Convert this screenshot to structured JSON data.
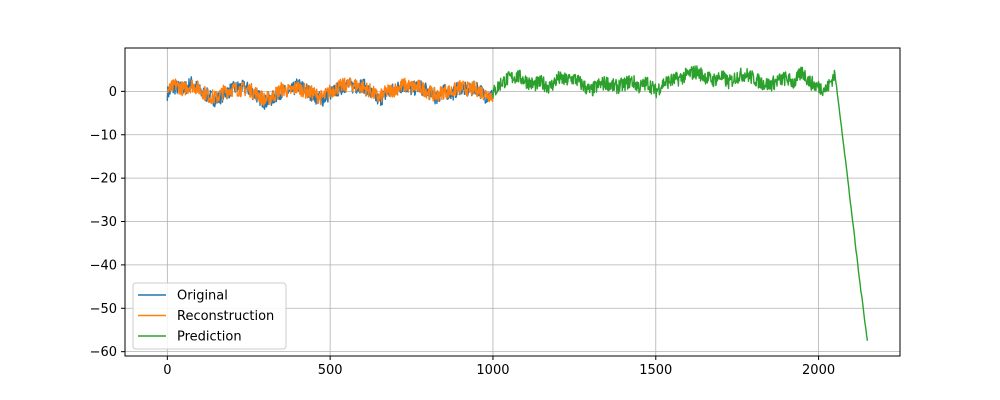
{
  "chart_data": {
    "type": "line",
    "title": "",
    "xlabel": "",
    "ylabel": "",
    "xlim": [
      -130,
      2250
    ],
    "ylim": [
      -61,
      10
    ],
    "grid": true,
    "legend": {
      "placement": "lower-left"
    },
    "x_ticks": [
      0,
      500,
      1000,
      1500,
      2000
    ],
    "x_tick_labels": [
      "0",
      "500",
      "1000",
      "1500",
      "2000"
    ],
    "y_ticks": [
      0,
      -10,
      -20,
      -30,
      -40,
      -50,
      -60
    ],
    "y_tick_labels": [
      "0",
      "−10",
      "−20",
      "−30",
      "−40",
      "−50",
      "−60"
    ],
    "series": [
      {
        "name": "Original",
        "color": "#1f77b4",
        "x": [
          0,
          25,
          50,
          75,
          100,
          125,
          150,
          175,
          200,
          225,
          250,
          275,
          300,
          325,
          350,
          375,
          400,
          425,
          450,
          475,
          500,
          525,
          550,
          575,
          600,
          625,
          650,
          675,
          700,
          725,
          750,
          775,
          800,
          825,
          850,
          875,
          900,
          925,
          950,
          975,
          1000
        ],
        "y": [
          -0.5,
          1.0,
          0.5,
          2.0,
          0.0,
          -1.0,
          -2.0,
          -0.5,
          0.5,
          1.0,
          0.5,
          -1.0,
          -2.5,
          -1.5,
          0.0,
          -0.5,
          1.5,
          0.5,
          -1.0,
          -2.0,
          -0.5,
          0.5,
          1.5,
          1.0,
          1.5,
          -0.5,
          -2.0,
          -0.5,
          0.5,
          1.5,
          0.5,
          1.0,
          0.0,
          -1.5,
          0.0,
          -0.5,
          1.0,
          0.0,
          1.0,
          -1.0,
          -1.0
        ]
      },
      {
        "name": "Reconstruction",
        "color": "#ff7f0e",
        "x": [
          0,
          25,
          50,
          75,
          100,
          125,
          150,
          175,
          200,
          225,
          250,
          275,
          300,
          325,
          350,
          375,
          400,
          425,
          450,
          475,
          500,
          525,
          550,
          575,
          600,
          625,
          650,
          675,
          700,
          725,
          750,
          775,
          800,
          825,
          850,
          875,
          900,
          925,
          950,
          975,
          1000
        ],
        "y": [
          0.0,
          1.5,
          0.5,
          1.5,
          0.5,
          -1.0,
          -1.5,
          0.0,
          0.5,
          0.5,
          0.5,
          -0.5,
          -2.0,
          -1.0,
          0.5,
          0.0,
          1.0,
          0.0,
          -0.5,
          -1.5,
          0.0,
          1.0,
          1.5,
          1.5,
          1.0,
          0.0,
          -1.5,
          0.0,
          0.5,
          1.5,
          1.0,
          1.0,
          0.0,
          -1.0,
          0.0,
          0.0,
          1.0,
          0.5,
          0.5,
          -0.5,
          -1.0
        ]
      },
      {
        "name": "Prediction",
        "color": "#2ca02c",
        "x": [
          1000,
          1025,
          1050,
          1075,
          1100,
          1125,
          1150,
          1175,
          1200,
          1225,
          1250,
          1275,
          1300,
          1325,
          1350,
          1375,
          1400,
          1425,
          1450,
          1475,
          1500,
          1525,
          1550,
          1575,
          1600,
          1625,
          1650,
          1675,
          1700,
          1725,
          1750,
          1775,
          1800,
          1825,
          1850,
          1875,
          1900,
          1925,
          1950,
          1975,
          2000,
          2025,
          2050,
          2075,
          2100,
          2125,
          2150
        ],
        "y": [
          -0.5,
          2.0,
          3.0,
          3.5,
          2.5,
          1.5,
          2.0,
          1.0,
          3.0,
          2.5,
          3.0,
          1.5,
          0.0,
          1.5,
          2.0,
          1.0,
          1.5,
          2.5,
          1.0,
          2.0,
          0.0,
          2.0,
          2.5,
          3.0,
          4.0,
          4.5,
          3.5,
          2.5,
          3.5,
          2.0,
          3.5,
          4.0,
          3.0,
          2.0,
          1.5,
          2.5,
          3.0,
          2.0,
          4.5,
          2.0,
          1.0,
          0.5,
          4.0,
          -11.0,
          -27.0,
          -43.0,
          -57.5
        ]
      }
    ]
  }
}
